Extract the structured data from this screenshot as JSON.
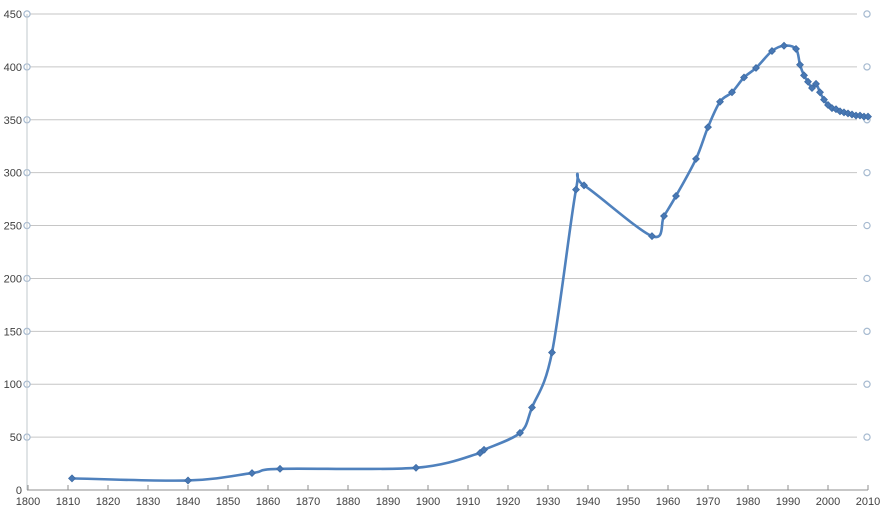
{
  "chart_data": {
    "type": "line",
    "smooth": true,
    "marker": "diamond",
    "grid": true,
    "legend": "none",
    "xlim": [
      1800,
      2010
    ],
    "ylim": [
      0,
      450
    ],
    "x_ticks": [
      1800,
      1810,
      1820,
      1830,
      1840,
      1850,
      1860,
      1870,
      1880,
      1890,
      1900,
      1910,
      1920,
      1930,
      1940,
      1950,
      1960,
      1970,
      1980,
      1990,
      2000,
      2010
    ],
    "y_ticks": [
      0,
      50,
      100,
      150,
      200,
      250,
      300,
      350,
      400,
      450
    ],
    "x": [
      1811,
      1840,
      1856,
      1863,
      1897,
      1913,
      1914,
      1923,
      1926,
      1931,
      1937,
      1939,
      1956,
      1959,
      1962,
      1967,
      1970,
      1973,
      1976,
      1979,
      1982,
      1986,
      1989,
      1992,
      1993,
      1994,
      1995,
      1996,
      1997,
      1998,
      1999,
      2000,
      2001,
      2002,
      2003,
      2004,
      2005,
      2006,
      2007,
      2008,
      2009,
      2010
    ],
    "values": [
      11,
      9,
      16,
      20,
      21,
      35,
      38,
      54,
      78,
      130,
      284,
      288,
      240,
      259,
      278,
      313,
      343,
      367,
      376,
      390,
      399,
      415,
      420,
      417,
      402,
      392,
      386,
      380,
      384,
      376,
      369,
      364,
      361,
      360,
      358,
      357,
      356,
      355,
      354,
      354,
      353,
      353
    ],
    "colors": {
      "line": "#4F81BD",
      "marker_fill": "#4878B4",
      "marker_edge": "#3E6CA5",
      "grid": "#C6C6C6",
      "y_axis": "#C2C8CE",
      "x_axis": "#8F8F8F",
      "tick": "#8F8F8F",
      "tick_label": "#3F3F3F",
      "end_circle": "#A6BAD0",
      "background": "#FFFFFF"
    }
  }
}
